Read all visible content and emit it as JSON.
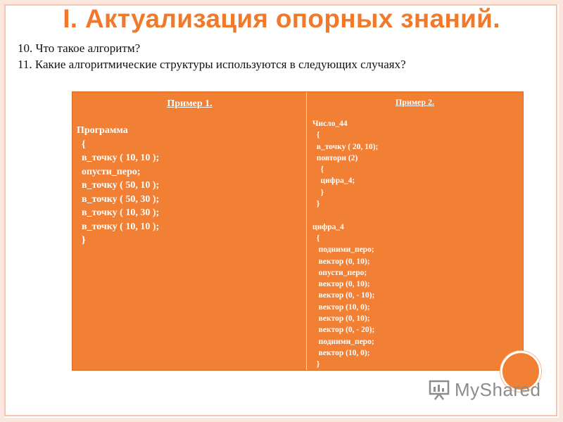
{
  "title": "I. Актуализация опорных знаний.",
  "questions": [
    "10. Что такое алгоритм?",
    "11. Какие  алгоритмические структуры используются в следующих случаях?"
  ],
  "example1": {
    "heading": "Пример 1.",
    "lines": [
      "Программа",
      "  {",
      "  в_точку ( 10, 10 );",
      "  опусти_перо;",
      "  в_точку ( 50, 10 );",
      "  в_точку ( 50, 30 );",
      "  в_точку ( 10, 30 );",
      "  в_точку ( 10, 10 );",
      "  }"
    ]
  },
  "example2": {
    "heading": "Пример 2.",
    "lines": [
      "Число_44",
      "  {",
      "  в_точку ( 20, 10);",
      "  повтори (2)",
      "    {",
      "    цифра_4;",
      "    }",
      "  }",
      "",
      "цифра_4",
      "  {",
      "   подними_перо;",
      "   вектор (0, 10);",
      "   опусти_перо;",
      "   вектор (0, 10);",
      "   вектор (0, - 10);",
      "   вектор (10, 0);",
      "   вектор (0, 10);",
      "   вектор (0, - 20);",
      "   подними_перо;",
      "   вектор (10, 0);",
      "  }"
    ]
  },
  "watermark": "MyShared",
  "colors": {
    "accent": "#f17f34",
    "title": "#f0792c"
  }
}
